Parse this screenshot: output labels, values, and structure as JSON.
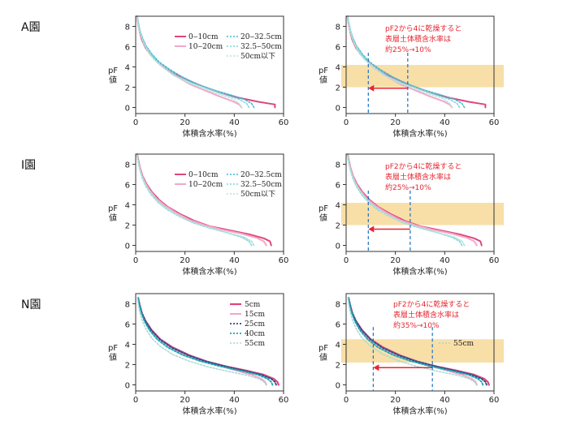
{
  "colors": {
    "c1": "#e0457b",
    "c2": "#f2a7c8",
    "c3": "#41b8d6",
    "c4": "#7fd6d6",
    "c5": "#b6e6e0",
    "n_dark": "#1f4f8a",
    "n_teal": "#1aa5b0",
    "n_light": "#a9d8d6",
    "band": "#f7d999",
    "arrow": "#e8262f",
    "guide": "#1f6fbf"
  },
  "chart_data": [
    {
      "type": "line",
      "orchard": "A園",
      "xlabel": "体積含水率(%)",
      "ylabel": [
        "pF",
        "値"
      ],
      "xlim": [
        0,
        60
      ],
      "ylim": [
        -0.6,
        9
      ],
      "xticks": [
        0,
        20,
        40,
        60
      ],
      "yticks": [
        0,
        2,
        4,
        6,
        8
      ],
      "legend": [
        "0‒10cm",
        "10‒20cm",
        "20‒32.5cm",
        "32.5‒50cm",
        "50cm以下"
      ],
      "series": [
        {
          "name": "0‒10cm",
          "x": [
            56.5,
            56.5,
            50,
            42,
            35,
            28,
            22,
            16,
            12,
            9,
            6,
            4,
            2.5,
            1.8,
            1.2,
            0.8,
            0.5
          ],
          "y": [
            0,
            0.3,
            0.55,
            0.95,
            1.4,
            2.0,
            2.6,
            3.3,
            3.9,
            4.5,
            5.2,
            5.9,
            6.7,
            7.3,
            8.0,
            8.6,
            9.0
          ]
        },
        {
          "name": "10‒20cm",
          "x": [
            43,
            42,
            39,
            34,
            28,
            22,
            17,
            12,
            9,
            6,
            4,
            2.5,
            1.6,
            1.0,
            0.6
          ],
          "y": [
            0,
            0.3,
            0.65,
            1.1,
            1.7,
            2.3,
            3.0,
            3.8,
            4.4,
            5.2,
            6.0,
            6.9,
            7.6,
            8.4,
            9.0
          ]
        },
        {
          "name": "20‒32.5cm",
          "x": [
            48,
            47,
            44,
            39,
            32,
            25,
            19,
            13.5,
            9.5,
            6.5,
            4.2,
            2.7,
            1.7,
            1.1,
            0.7
          ],
          "y": [
            0,
            0.4,
            0.8,
            1.2,
            1.7,
            2.3,
            3.0,
            3.8,
            4.5,
            5.3,
            6.1,
            6.9,
            7.6,
            8.4,
            9.0
          ]
        },
        {
          "name": "32.5‒50cm",
          "x": [
            46,
            45,
            42,
            37,
            30,
            23,
            17,
            12,
            8.5,
            5.8,
            3.8,
            2.4,
            1.5,
            1.0,
            0.6
          ],
          "y": [
            0,
            0.4,
            0.8,
            1.2,
            1.8,
            2.4,
            3.1,
            3.9,
            4.6,
            5.4,
            6.2,
            7.0,
            7.7,
            8.5,
            9.0
          ]
        },
        {
          "name": "50cm以下",
          "x": [
            43,
            42,
            39,
            34,
            27,
            21,
            15,
            11,
            7.5,
            5,
            3.3,
            2.1,
            1.3,
            0.9,
            0.5
          ],
          "y": [
            0,
            0.4,
            0.9,
            1.3,
            1.9,
            2.5,
            3.2,
            4.0,
            4.7,
            5.5,
            6.3,
            7.1,
            7.8,
            8.6,
            9.0
          ]
        }
      ],
      "band": [
        2,
        4.2
      ],
      "arrow": {
        "from": 25,
        "to": 9,
        "y": 1.9
      },
      "guides": [
        9,
        25
      ],
      "annotation": [
        "pF2から4に乾燥すると",
        "表層土体積含水率は",
        "約25%→10%"
      ]
    },
    {
      "type": "line",
      "orchard": "I園",
      "xlabel": "体積含水率(%)",
      "ylabel": [
        "pF",
        "値"
      ],
      "xlim": [
        0,
        60
      ],
      "ylim": [
        -0.6,
        9
      ],
      "xticks": [
        0,
        20,
        40,
        60
      ],
      "yticks": [
        0,
        2,
        4,
        6,
        8
      ],
      "legend": [
        "0‒10cm",
        "10‒20cm",
        "20‒32.5cm",
        "32.5‒50cm",
        "50cm以下"
      ],
      "series": [
        {
          "name": "0‒10cm",
          "x": [
            55,
            54.5,
            52,
            46,
            38,
            30,
            24,
            18,
            13,
            9.5,
            6.5,
            4.3,
            2.7,
            1.7,
            1.1,
            0.6
          ],
          "y": [
            0,
            0.4,
            0.7,
            1.1,
            1.5,
            1.9,
            2.4,
            3.1,
            3.8,
            4.5,
            5.3,
            6.1,
            6.9,
            7.7,
            8.4,
            9.0
          ]
        },
        {
          "name": "10‒20cm",
          "x": [
            53,
            52,
            49,
            43,
            35,
            28,
            22,
            16.5,
            12,
            8.5,
            5.8,
            3.8,
            2.4,
            1.5,
            0.9,
            0.5
          ],
          "y": [
            0,
            0.4,
            0.75,
            1.15,
            1.55,
            2.0,
            2.5,
            3.2,
            3.9,
            4.6,
            5.4,
            6.2,
            7.0,
            7.8,
            8.5,
            9.0
          ]
        },
        {
          "name": "20‒32.5cm",
          "x": [
            48,
            47,
            44,
            38,
            31,
            24.5,
            19,
            14,
            10,
            7,
            4.6,
            3.0,
            1.9,
            1.2,
            0.8,
            0.5
          ],
          "y": [
            0,
            0.4,
            0.8,
            1.2,
            1.65,
            2.15,
            2.7,
            3.4,
            4.1,
            4.9,
            5.7,
            6.5,
            7.3,
            8.0,
            8.6,
            9.0
          ]
        },
        {
          "name": "32.5‒50cm",
          "x": [
            47,
            46,
            43,
            37,
            30,
            23.5,
            18,
            13,
            9.2,
            6.3,
            4.2,
            2.7,
            1.7,
            1.1,
            0.7,
            0.4
          ],
          "y": [
            0,
            0.4,
            0.8,
            1.25,
            1.7,
            2.2,
            2.8,
            3.5,
            4.2,
            5.0,
            5.8,
            6.6,
            7.4,
            8.1,
            8.7,
            9.0
          ]
        },
        {
          "name": "50cm以下",
          "x": [
            48,
            47,
            44,
            38,
            31,
            24.5,
            19,
            14,
            10,
            7,
            4.6,
            3.0,
            1.9,
            1.2,
            0.8,
            0.5
          ],
          "y": [
            0,
            0.4,
            0.8,
            1.2,
            1.65,
            2.15,
            2.7,
            3.4,
            4.1,
            4.9,
            5.7,
            6.5,
            7.3,
            8.0,
            8.6,
            9.0
          ]
        }
      ],
      "band": [
        2,
        4.2
      ],
      "arrow": {
        "from": 26,
        "to": 9,
        "y": 1.6
      },
      "guides": [
        9,
        26
      ],
      "annotation": [
        "pF2から4に乾燥すると",
        "表層土体積含水率は",
        "約25%→10%"
      ]
    },
    {
      "type": "line",
      "orchard": "N園",
      "xlabel": "体積含水率(%)",
      "ylabel": [
        "pF",
        "値"
      ],
      "xlim": [
        0,
        60
      ],
      "ylim": [
        -0.6,
        9
      ],
      "xticks": [
        0,
        20,
        40,
        60
      ],
      "yticks": [
        0,
        2,
        4,
        6,
        8
      ],
      "legend": [
        "5cm",
        "15cm",
        "25cm",
        "40cm",
        "55cm"
      ],
      "series": [
        {
          "name": "5cm",
          "x": [
            58,
            57.5,
            56,
            52,
            45,
            37,
            29,
            22,
            15,
            10,
            6.5,
            4,
            2.5,
            1.6,
            1.0
          ],
          "y": [
            0,
            0.3,
            0.6,
            1.0,
            1.4,
            1.8,
            2.3,
            2.9,
            3.7,
            4.5,
            5.4,
            6.3,
            7.1,
            7.9,
            8.6
          ]
        },
        {
          "name": "15cm",
          "x": [
            53,
            52.5,
            51,
            47,
            41,
            34,
            26,
            19.5,
            13.5,
            9,
            6,
            3.8,
            2.4,
            1.5,
            1.0
          ],
          "y": [
            0,
            0.3,
            0.6,
            1.0,
            1.4,
            1.9,
            2.4,
            3.0,
            3.8,
            4.6,
            5.4,
            6.3,
            7.1,
            7.9,
            8.6
          ]
        },
        {
          "name": "25cm",
          "x": [
            57,
            56.5,
            55,
            51,
            44,
            36,
            28,
            21,
            14.5,
            9.8,
            6.3,
            4,
            2.5,
            1.6,
            1.0
          ],
          "y": [
            0,
            0.3,
            0.6,
            1.0,
            1.4,
            1.85,
            2.35,
            2.95,
            3.7,
            4.5,
            5.4,
            6.3,
            7.1,
            7.9,
            8.6
          ]
        },
        {
          "name": "40cm",
          "x": [
            55.5,
            55,
            53.5,
            49.5,
            42.5,
            34,
            26,
            19,
            13,
            8.7,
            5.7,
            3.6,
            2.3,
            1.5,
            1.0
          ],
          "y": [
            0,
            0.3,
            0.6,
            1.0,
            1.4,
            1.85,
            2.35,
            2.95,
            3.7,
            4.5,
            5.35,
            6.25,
            7.1,
            7.9,
            8.6
          ]
        },
        {
          "name": "55cm",
          "x": [
            53,
            52,
            50,
            45,
            37,
            29,
            21.5,
            15,
            10,
            6.5,
            4.2,
            2.7,
            1.7,
            1.1,
            0.7
          ],
          "y": [
            0,
            0.3,
            0.6,
            0.95,
            1.35,
            1.8,
            2.35,
            3.0,
            3.8,
            4.6,
            5.5,
            6.3,
            7.1,
            7.9,
            8.6
          ]
        }
      ],
      "band": [
        2.2,
        4.5
      ],
      "arrow": {
        "from": 35,
        "to": 11,
        "y": 1.7
      },
      "guides": [
        11,
        35
      ],
      "annotation": [
        "pF2から4に乾燥すると",
        "表層土体積含水率は",
        "約35%→10%"
      ]
    }
  ]
}
